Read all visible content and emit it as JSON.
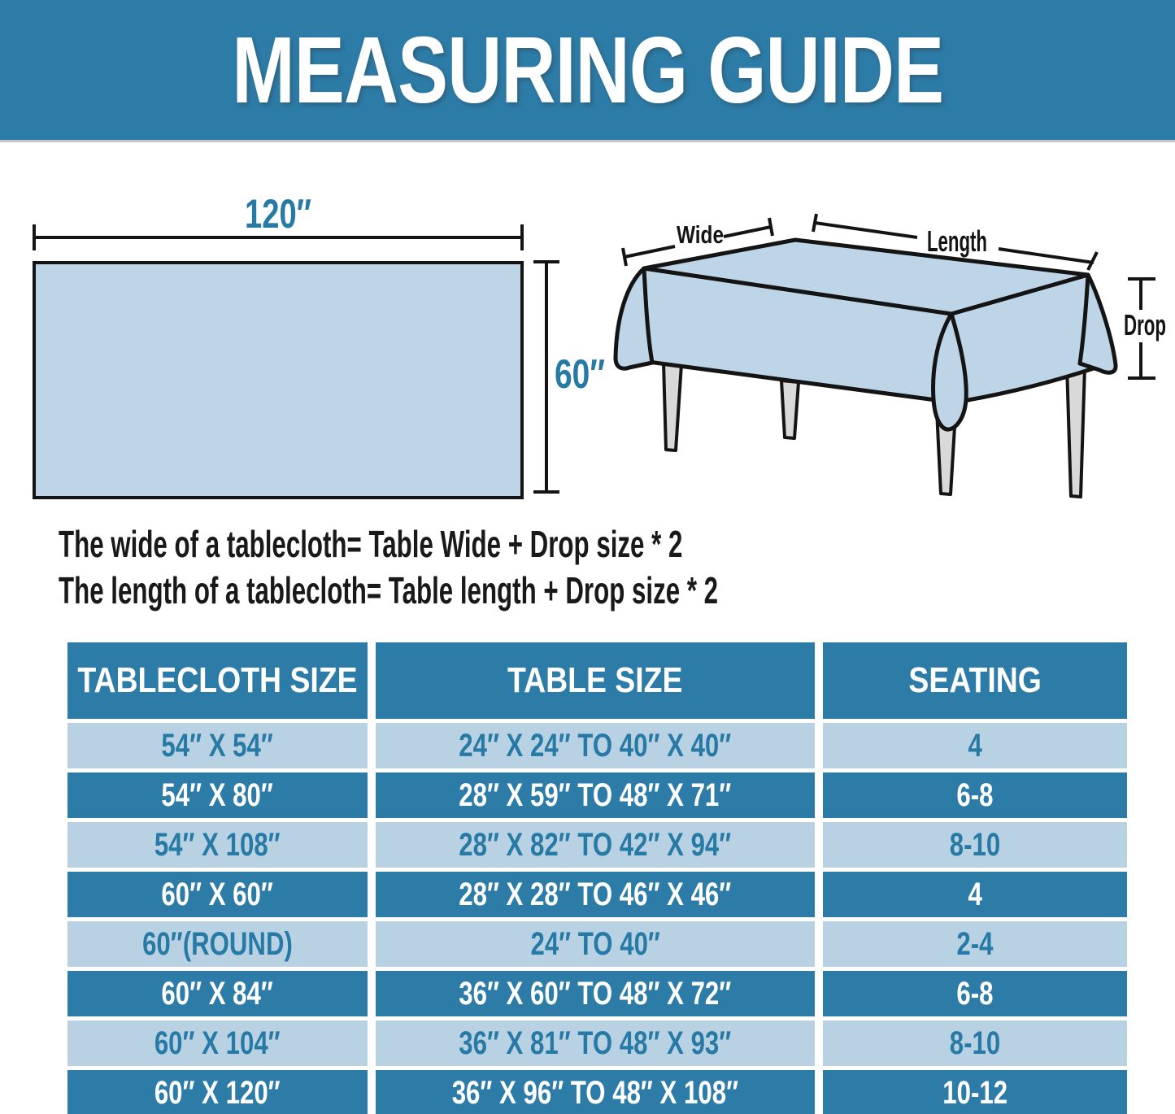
{
  "header": {
    "title": "MEASURING GUIDE"
  },
  "diagram": {
    "flat_cloth": {
      "width_label": "120″",
      "height_label": "60″"
    },
    "table_illustration": {
      "wide_label": "Wide",
      "length_label": "Length",
      "drop_label": "Drop"
    }
  },
  "formulas": {
    "line1": "The wide of a tablecloth= Table Wide + Drop size * 2",
    "line2": "The length of a tablecloth= Table length + Drop size * 2"
  },
  "size_table": {
    "columns": [
      "TABLECLOTH SIZE",
      "TABLE SIZE",
      "SEATING"
    ],
    "rows": [
      [
        "54″ X 54″",
        "24″ X 24″ TO 40″ X 40″",
        "4"
      ],
      [
        "54″ X 80″",
        "28″ X 59″ TO 48″ X 71″",
        "6-8"
      ],
      [
        "54″ X 108″",
        "28″ X 82″ TO 42″ X 94″",
        "8-10"
      ],
      [
        "60″ X 60″",
        "28″ X 28″ TO 46″ X 46″",
        "4"
      ],
      [
        "60″(ROUND)",
        "24″ TO 40″",
        "2-4"
      ],
      [
        "60″ X 84″",
        "36″ X 60″ TO 48″ X 72″",
        "6-8"
      ],
      [
        "60″ X 104″",
        "36″ X 81″ TO 48″ X 93″",
        "8-10"
      ],
      [
        "60″ X 120″",
        "36″ X 96″ TO 48″ X 108″",
        "10-12"
      ]
    ]
  },
  "colors": {
    "banner_blue": "#2D7CA8",
    "light_row_blue": "#B9D2E3",
    "teal_text": "#287AA6",
    "cloth_fill": "#BDD5E7",
    "outline_black": "#141414",
    "leg_gray": "#D9D9D9"
  }
}
